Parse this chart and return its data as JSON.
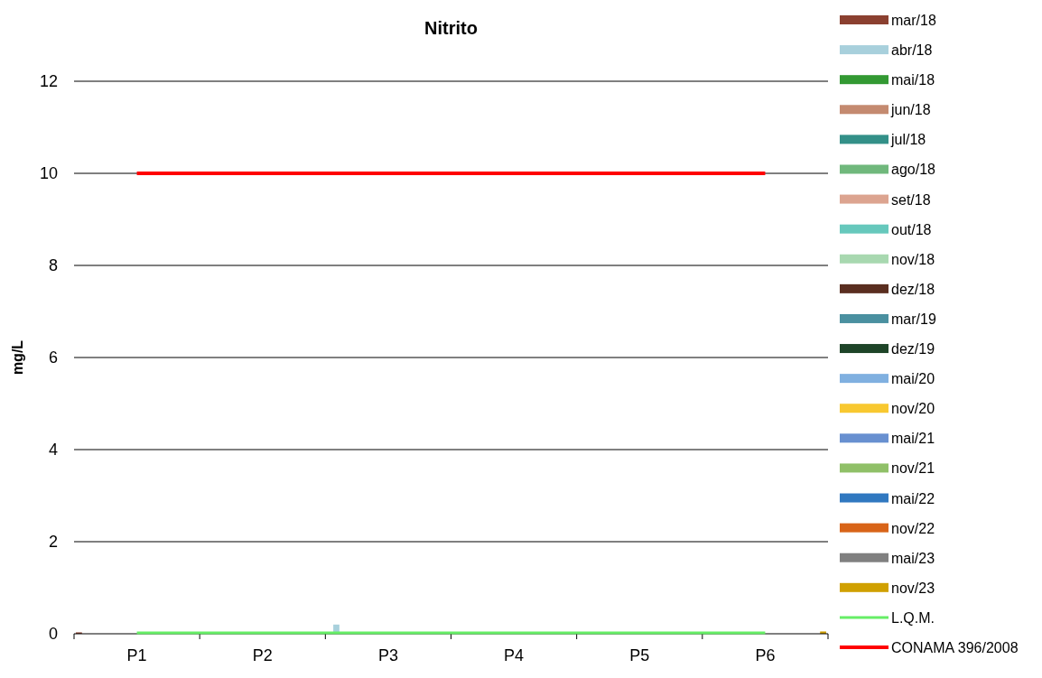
{
  "chart_data": {
    "type": "bar",
    "title": "Nitrito",
    "ylabel": "mg/L",
    "categories": [
      "P1",
      "P2",
      "P3",
      "P4",
      "P5",
      "P6"
    ],
    "ylim": [
      0,
      12
    ],
    "yticks": [
      0,
      2,
      4,
      6,
      8,
      10,
      12
    ],
    "grid": "y",
    "legend": "right",
    "series": [
      {
        "name": "mar/18",
        "color": "#8b4030",
        "values": [
          0.03,
          0,
          0,
          0,
          0,
          0
        ]
      },
      {
        "name": "abr/18",
        "color": "#a8d0dc",
        "values": [
          0,
          0,
          0.2,
          0,
          0,
          0
        ]
      },
      {
        "name": "mai/18",
        "color": "#339933",
        "values": [
          0,
          0,
          0,
          0,
          0,
          0
        ]
      },
      {
        "name": "jun/18",
        "color": "#c48a70",
        "values": [
          0,
          0,
          0,
          0,
          0,
          0
        ]
      },
      {
        "name": "jul/18",
        "color": "#339088",
        "values": [
          0,
          0,
          0,
          0,
          0,
          0
        ]
      },
      {
        "name": "ago/18",
        "color": "#70b87c",
        "values": [
          0,
          0,
          0,
          0,
          0,
          0
        ]
      },
      {
        "name": "set/18",
        "color": "#dca490",
        "values": [
          0,
          0,
          0,
          0,
          0,
          0
        ]
      },
      {
        "name": "out/18",
        "color": "#66c8bc",
        "values": [
          0,
          0,
          0,
          0,
          0,
          0
        ]
      },
      {
        "name": "nov/18",
        "color": "#a8d8b0",
        "values": [
          0,
          0,
          0,
          0,
          0,
          0
        ]
      },
      {
        "name": "dez/18",
        "color": "#5a2e20",
        "values": [
          0,
          0,
          0,
          0,
          0,
          0
        ]
      },
      {
        "name": "mar/19",
        "color": "#4a90a0",
        "values": [
          0,
          0,
          0,
          0,
          0,
          0
        ]
      },
      {
        "name": "dez/19",
        "color": "#1e4428",
        "values": [
          0,
          0,
          0,
          0,
          0,
          null
        ]
      },
      {
        "name": "mai/20",
        "color": "#80b0e0",
        "values": [
          0,
          0,
          0,
          0,
          0,
          0
        ]
      },
      {
        "name": "nov/20",
        "color": "#f8c830",
        "values": [
          0,
          0,
          0,
          0,
          0,
          0
        ]
      },
      {
        "name": "mai/21",
        "color": "#6890d0",
        "values": [
          0,
          0,
          0,
          0,
          0,
          0
        ]
      },
      {
        "name": "nov/21",
        "color": "#90c068",
        "values": [
          0,
          0,
          0,
          0,
          0,
          0
        ]
      },
      {
        "name": "mai/22",
        "color": "#3078c0",
        "values": [
          0,
          0,
          0,
          0,
          0,
          0
        ]
      },
      {
        "name": "nov/22",
        "color": "#d86418",
        "values": [
          0,
          0,
          0,
          0,
          0,
          0
        ]
      },
      {
        "name": "mai/23",
        "color": "#808080",
        "values": [
          0,
          0,
          0,
          0,
          0,
          0
        ]
      },
      {
        "name": "nov/23",
        "color": "#d0a000",
        "values": [
          0,
          0,
          0,
          0,
          0,
          0.05
        ]
      },
      {
        "name": "L.Q.M.",
        "type": "line",
        "color": "#66ee66",
        "values": [
          0.02,
          0.02,
          0.02,
          0.02,
          0.02,
          0.02
        ]
      },
      {
        "name": "CONAMA 396/2008",
        "type": "line",
        "color": "#ff0000",
        "values": [
          10,
          10,
          10,
          10,
          10,
          10
        ]
      }
    ]
  }
}
